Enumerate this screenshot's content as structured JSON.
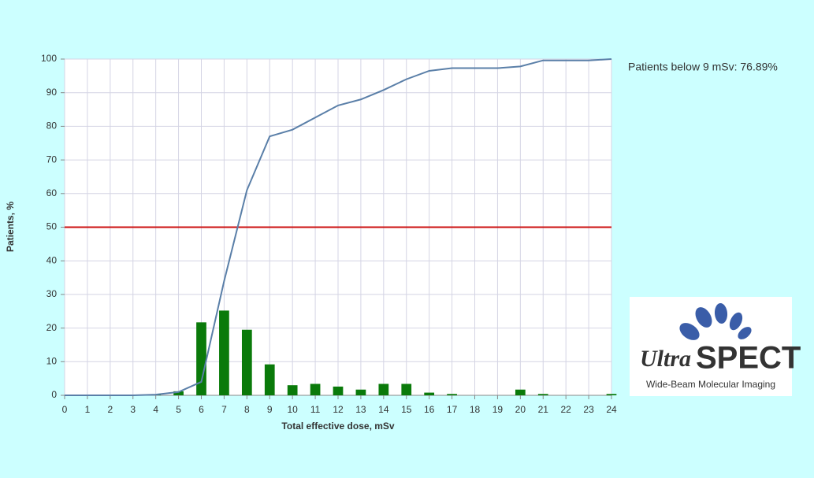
{
  "chart_data": {
    "type": "combo",
    "x_label": "Total effective dose, mSv",
    "y_label": "Patients, %",
    "annotation": "Patients below 9 mSv:  76.89%",
    "x": [
      0,
      1,
      2,
      3,
      4,
      5,
      6,
      7,
      8,
      9,
      10,
      11,
      12,
      13,
      14,
      15,
      16,
      17,
      18,
      19,
      20,
      21,
      22,
      23,
      24
    ],
    "xlim": [
      0,
      24
    ],
    "xticks": [
      0,
      1,
      2,
      3,
      4,
      5,
      6,
      7,
      8,
      9,
      10,
      11,
      12,
      13,
      14,
      15,
      16,
      17,
      18,
      19,
      20,
      21,
      22,
      23,
      24
    ],
    "ylim": [
      0,
      100
    ],
    "yticks": [
      0,
      10,
      20,
      30,
      40,
      50,
      60,
      70,
      80,
      90,
      100
    ],
    "grid": true,
    "hline": {
      "value": 50,
      "color": "#cc1111"
    },
    "series": [
      {
        "type": "bar",
        "color": "#0a7a0a",
        "values": [
          0,
          0,
          0,
          0,
          0.3,
          1.2,
          21.7,
          25.2,
          19.5,
          9.2,
          3,
          3.4,
          2.6,
          1.7,
          3.4,
          3.4,
          0.8,
          0.4,
          0,
          0,
          1.7,
          0.4,
          0,
          0,
          0.4
        ]
      },
      {
        "type": "line",
        "color": "#5a7fa8",
        "values": [
          0,
          0,
          0,
          0,
          0.2,
          1,
          4,
          34,
          61,
          77,
          79,
          82.6,
          86.2,
          88,
          90.8,
          94,
          96.5,
          97.3,
          97.3,
          97.3,
          97.8,
          99.6,
          99.6,
          99.6,
          100
        ]
      }
    ]
  },
  "logo": {
    "word1": "Ultra",
    "word2": "SPECT",
    "tagline": "Wide-Beam Molecular Imaging"
  }
}
